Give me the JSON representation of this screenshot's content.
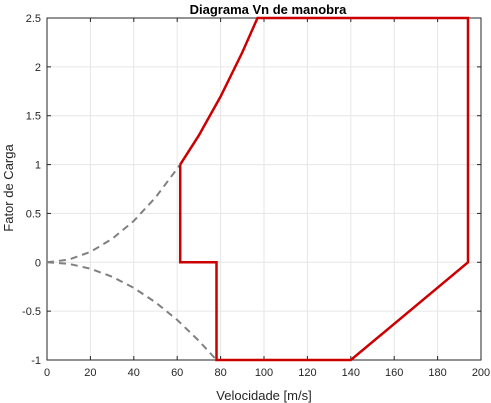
{
  "chart_data": {
    "type": "line",
    "title": "Diagrama Vn de manobra",
    "xlabel": "Velocidade [m/s]",
    "ylabel": "Fator de Carga",
    "xlim": [
      0,
      200
    ],
    "ylim": [
      -1,
      2.5
    ],
    "xticks": [
      0,
      20,
      40,
      60,
      80,
      100,
      120,
      140,
      160,
      180,
      200
    ],
    "yticks": [
      -1,
      -0.5,
      0,
      0.5,
      1,
      1.5,
      2,
      2.5
    ],
    "xtick_labels": [
      "0",
      "20",
      "40",
      "60",
      "80",
      "100",
      "120",
      "140",
      "160",
      "180",
      "200"
    ],
    "ytick_labels": [
      "-1",
      "-0.5",
      "0",
      "0.5",
      "1",
      "1.5",
      "2",
      "2.5"
    ],
    "grid": true,
    "series": [
      {
        "style": "dashed",
        "color": "#808080",
        "x": [
          0,
          10,
          20,
          30,
          40,
          50,
          61.4
        ],
        "y": [
          0,
          0.027,
          0.106,
          0.239,
          0.424,
          0.663,
          1.0
        ]
      },
      {
        "style": "dashed",
        "color": "#808080",
        "x": [
          0,
          10,
          20,
          30,
          40,
          50,
          60,
          70,
          78.1
        ],
        "y": [
          0,
          -0.016,
          -0.066,
          -0.148,
          -0.262,
          -0.41,
          -0.59,
          -0.803,
          -1.0
        ]
      },
      {
        "style": "solid",
        "color": "#cc0000",
        "x": [
          61.4,
          70,
          80,
          90,
          97,
          194,
          194,
          140,
          78.1,
          78.1,
          61.4,
          61.4
        ],
        "y": [
          1.0,
          1.3,
          1.697,
          2.148,
          2.5,
          2.5,
          0,
          -1,
          -1,
          0,
          0,
          1.0
        ]
      }
    ]
  }
}
